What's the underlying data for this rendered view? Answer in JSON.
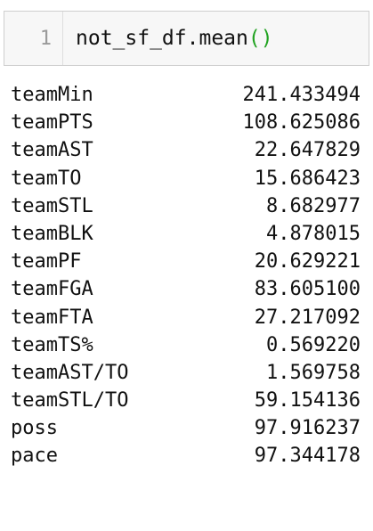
{
  "code_cell": {
    "line_number": "1",
    "code_text": "not_sf_df.mean",
    "paren_text": "()",
    "paren_color": "#22a322"
  },
  "output": {
    "rows": [
      {
        "label": "teamMin",
        "value": "241.433494"
      },
      {
        "label": "teamPTS",
        "value": "108.625086"
      },
      {
        "label": "teamAST",
        "value": "22.647829"
      },
      {
        "label": "teamTO",
        "value": "15.686423"
      },
      {
        "label": "teamSTL",
        "value": "8.682977"
      },
      {
        "label": "teamBLK",
        "value": "4.878015"
      },
      {
        "label": "teamPF",
        "value": "20.629221"
      },
      {
        "label": "teamFGA",
        "value": "83.605100"
      },
      {
        "label": "teamFTA",
        "value": "27.217092"
      },
      {
        "label": "teamTS%",
        "value": "0.569220"
      },
      {
        "label": "teamAST/TO",
        "value": "1.569758"
      },
      {
        "label": "teamSTL/TO",
        "value": "59.154136"
      },
      {
        "label": "poss",
        "value": "97.916237"
      },
      {
        "label": "pace",
        "value": "97.344178"
      }
    ]
  }
}
